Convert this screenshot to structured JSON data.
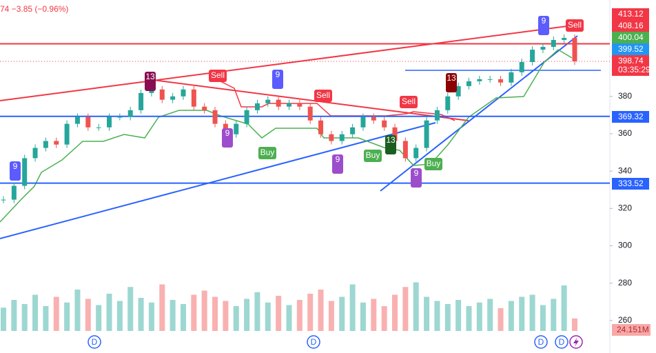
{
  "header": {
    "price_change": "74  −3.85 (−0.96%)"
  },
  "chart_data": {
    "type": "candlestick",
    "closes": [
      324.7,
      332.1,
      346.9,
      352.4,
      356.1,
      354.2,
      365.3,
      369,
      363.4,
      363.4,
      369,
      369,
      372.6,
      381.8,
      383.7,
      378.2,
      380,
      383.7,
      374.5,
      372.6,
      365.3,
      359.7,
      365.3,
      372.6,
      376.3,
      378.2,
      374.5,
      376.3,
      374.5,
      367.1,
      359.7,
      356.1,
      359.7,
      363.4,
      369,
      367.1,
      363.4,
      356.1,
      346.9,
      352.4,
      367.1,
      372.6,
      380,
      385.5,
      388.1,
      389.2,
      389.2,
      387.4,
      392.9,
      398.4,
      405,
      406.5,
      410.2,
      411.3,
      398.74
    ],
    "volumes": [
      45,
      60,
      52,
      70,
      48,
      66,
      55,
      80,
      62,
      50,
      72,
      58,
      85,
      64,
      55,
      90,
      60,
      52,
      70,
      78,
      66,
      58,
      48,
      62,
      75,
      55,
      68,
      50,
      60,
      72,
      80,
      58,
      66,
      90,
      55,
      62,
      48,
      70,
      85,
      94,
      66,
      58,
      52,
      60,
      48,
      55,
      62,
      44,
      58,
      66,
      70,
      50,
      62,
      88,
      24.151
    ],
    "ylim": [
      254.4,
      431.6
    ],
    "yticks": [
      260,
      280,
      300,
      320,
      340,
      360,
      380
    ],
    "price_tags": [
      413.12,
      408.16,
      400.04,
      399.52,
      398.74,
      369.32,
      333.52
    ],
    "countdown": "03:35:29",
    "volume_tag": {
      "value": 24.151,
      "label": "24.151M"
    },
    "signals": [
      "13",
      "Sell",
      "9",
      "Sell",
      "Sell",
      "13",
      "9",
      "Sell",
      "9",
      "9",
      "Buy",
      "9",
      "Buy",
      "13",
      "9",
      "Buy"
    ],
    "dividend_markers": [
      "D",
      "D",
      "D",
      "D"
    ]
  }
}
